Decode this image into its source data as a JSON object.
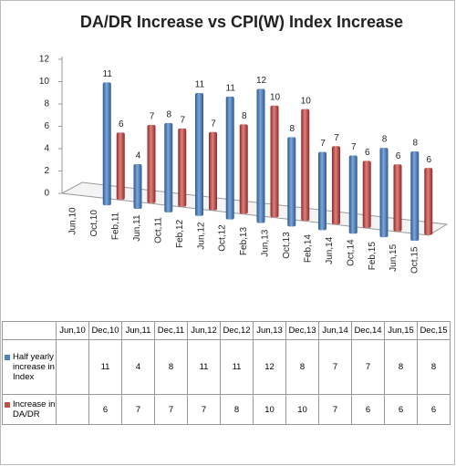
{
  "chart_data": {
    "type": "bar3d",
    "title": "DA/DR Increase vs CPI(W) Index Increase",
    "x_axis_labels": [
      "Jun,10",
      "Oct,10",
      "Feb,11",
      "Jun,11",
      "Oct,11",
      "Feb,12",
      "Jun,12",
      "Oct,12",
      "Feb,13",
      "Jun,13",
      "Oct,13",
      "Feb,14",
      "Jun,14",
      "Oct,14",
      "Feb,15",
      "Jun,15",
      "Oct,15"
    ],
    "categories": [
      "Jun,10",
      "Dec,10",
      "Jun,11",
      "Dec,11",
      "Jun,12",
      "Dec,12",
      "Jun,13",
      "Dec,13",
      "Jun,14",
      "Dec,14",
      "Jun,15",
      "Dec,15"
    ],
    "series": [
      {
        "name": "Half yearly increase in Index",
        "color": "#4f81bd",
        "values": [
          null,
          11,
          4,
          8,
          11,
          11,
          12,
          8,
          7,
          7,
          8,
          8
        ]
      },
      {
        "name": "Increase in DA/DR",
        "color": "#c0504d",
        "values": [
          null,
          6,
          7,
          7,
          7,
          8,
          10,
          10,
          7,
          6,
          6,
          6
        ]
      }
    ],
    "ylim": [
      0,
      12
    ],
    "yticks": [
      0,
      2,
      4,
      6,
      8,
      10,
      12
    ],
    "grid": false,
    "data_table": true
  }
}
